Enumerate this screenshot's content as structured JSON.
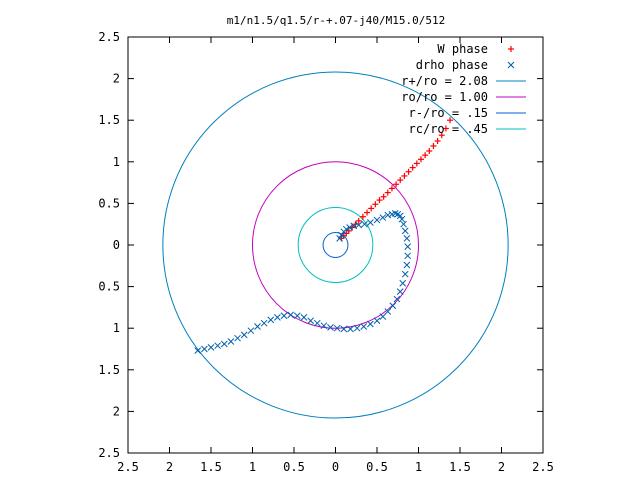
{
  "chart_data": {
    "type": "scatter",
    "title": "m1/n1.5/q1.5/r-+.07-j40/M15.0/512",
    "xlabel": "",
    "ylabel": "",
    "xlim": [
      -2.5,
      2.5
    ],
    "ylim": [
      -2.5,
      2.5
    ],
    "x_ticks": [
      -2.5,
      -2,
      -1.5,
      -1,
      -0.5,
      0,
      0.5,
      1,
      1.5,
      2,
      2.5
    ],
    "y_ticks": [
      -2.5,
      -2,
      -1.5,
      -1,
      -0.5,
      0,
      0.5,
      1,
      1.5,
      2,
      2.5
    ],
    "x_tick_labels": [
      "2.5",
      "2",
      "1.5",
      "1",
      "0.5",
      "0",
      "0.5",
      "1",
      "1.5",
      "2",
      "2.5"
    ],
    "y_tick_labels": [
      "2.5",
      "2",
      "1.5",
      "1",
      "0.5",
      "0",
      "0.5",
      "1",
      "1.5",
      "2",
      "2.5"
    ],
    "grid": false,
    "legend_position": "top-right",
    "series": [
      {
        "name": "W phase",
        "style": "points-plus",
        "color": "#ff0000",
        "x": [
          0.07,
          0.1,
          0.13,
          0.16,
          0.2,
          0.24,
          0.28,
          0.33,
          0.38,
          0.43,
          0.48,
          0.53,
          0.58,
          0.63,
          0.68,
          0.73,
          0.78,
          0.83,
          0.88,
          0.93,
          0.98,
          1.03,
          1.08,
          1.13,
          1.18,
          1.23,
          1.28,
          1.33,
          1.38
        ],
        "y": [
          0.08,
          0.11,
          0.14,
          0.17,
          0.21,
          0.25,
          0.29,
          0.34,
          0.39,
          0.44,
          0.49,
          0.54,
          0.58,
          0.63,
          0.68,
          0.73,
          0.78,
          0.83,
          0.88,
          0.93,
          0.98,
          1.03,
          1.08,
          1.13,
          1.19,
          1.25,
          1.32,
          1.4,
          1.5
        ]
      },
      {
        "name": "drho phase",
        "style": "points-cross",
        "color": "#0060ad",
        "x": [
          0.05,
          0.07,
          0.1,
          0.13,
          0.17,
          0.22,
          0.28,
          0.35,
          0.42,
          0.5,
          0.57,
          0.63,
          0.68,
          0.72,
          0.75,
          0.78,
          0.8,
          0.82,
          0.84,
          0.86,
          0.87,
          0.87,
          0.86,
          0.84,
          0.81,
          0.78,
          0.74,
          0.69,
          0.63,
          0.57,
          0.5,
          0.42,
          0.34,
          0.26,
          0.18,
          0.1,
          0.02,
          -0.06,
          -0.14,
          -0.22,
          -0.3,
          -0.38,
          -0.46,
          -0.54,
          -0.62,
          -0.7,
          -0.78,
          -0.86,
          -0.94,
          -1.02,
          -1.1,
          -1.18,
          -1.26,
          -1.34,
          -1.42,
          -1.5,
          -1.58,
          -1.66
        ],
        "y": [
          0.08,
          0.12,
          0.16,
          0.19,
          0.21,
          0.23,
          0.24,
          0.25,
          0.27,
          0.3,
          0.33,
          0.36,
          0.37,
          0.38,
          0.37,
          0.35,
          0.31,
          0.25,
          0.17,
          0.08,
          -0.02,
          -0.13,
          -0.24,
          -0.35,
          -0.46,
          -0.56,
          -0.65,
          -0.73,
          -0.8,
          -0.86,
          -0.91,
          -0.95,
          -0.98,
          -1.0,
          -1.01,
          -1.01,
          -1.0,
          -0.99,
          -0.97,
          -0.94,
          -0.91,
          -0.87,
          -0.85,
          -0.84,
          -0.85,
          -0.87,
          -0.9,
          -0.94,
          -0.98,
          -1.03,
          -1.08,
          -1.12,
          -1.16,
          -1.19,
          -1.21,
          -1.23,
          -1.25,
          -1.27
        ]
      },
      {
        "name": "r+/ro = 2.08",
        "style": "circle",
        "color": "#0080c0",
        "radius": 2.08
      },
      {
        "name": "ro/ro = 1.00",
        "style": "circle",
        "color": "#c000c0",
        "radius": 1.0
      },
      {
        "name": "r-/ro = .15",
        "style": "circle",
        "color": "#0060d0",
        "radius": 0.15
      },
      {
        "name": "rc/ro = .45",
        "style": "circle",
        "color": "#00c0c0",
        "radius": 0.45
      }
    ]
  }
}
